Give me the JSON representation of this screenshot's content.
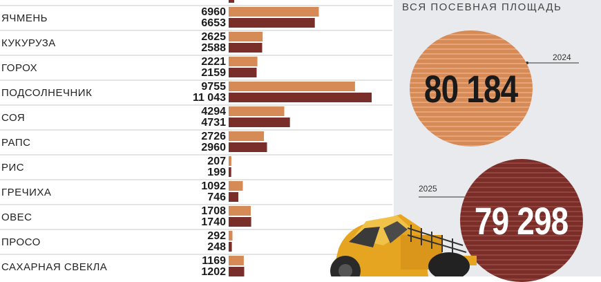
{
  "summary": {
    "title": "ВСЯ ПОСЕВНАЯ ПЛОЩАДЬ",
    "total_2024": "80 184",
    "total_2025": "79 298",
    "year_2024": "2024",
    "year_2025": "2025"
  },
  "colors": {
    "series_2024": "#d68a55",
    "series_2025": "#7a2e2a"
  },
  "chart_data": {
    "type": "bar",
    "orientation": "horizontal",
    "title": "",
    "xlabel": "",
    "ylabel": "",
    "grid": false,
    "legend": "none",
    "xlim": [
      0,
      11500
    ],
    "categories": [
      "ЯЧМЕНЬ",
      "КУКУРУЗА",
      "ГОРОХ",
      "ПОДСОЛНЕЧНИК",
      "СОЯ",
      "РАПС",
      "РИС",
      "ГРЕЧИХА",
      "ОВЕС",
      "ПРОСО",
      "САХАРНАЯ СВЕКЛА"
    ],
    "series": [
      {
        "values": [
          6960,
          2625,
          2221,
          9755,
          4294,
          2726,
          207,
          1092,
          1708,
          292,
          1169
        ],
        "labels": [
          "6960",
          "2625",
          "2221",
          "9755",
          "4294",
          "2726",
          "207",
          "1092",
          "1708",
          "292",
          "1169"
        ]
      },
      {
        "values": [
          6653,
          2588,
          2159,
          11043,
          4731,
          2960,
          199,
          746,
          1740,
          248,
          1202
        ],
        "labels": [
          "6653",
          "2588",
          "2159",
          "11 043",
          "4731",
          "2960",
          "199",
          "746",
          "1740",
          "248",
          "1202"
        ]
      }
    ]
  }
}
